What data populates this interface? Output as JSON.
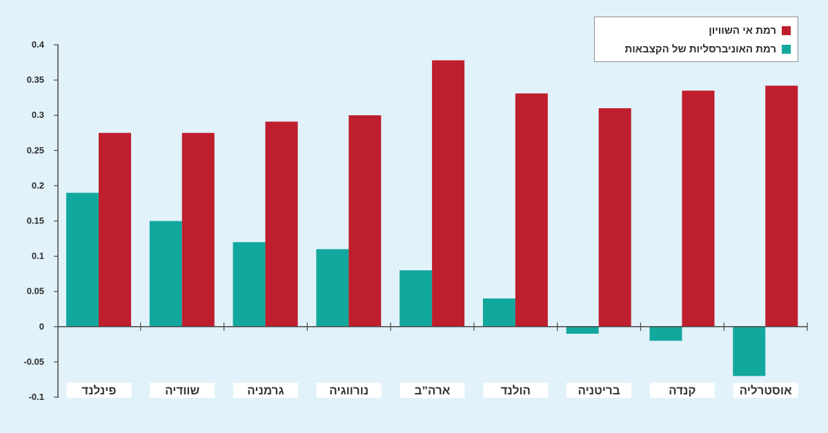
{
  "chart_data": {
    "type": "bar",
    "title": "",
    "xlabel": "",
    "ylabel": "",
    "ylim": [
      -0.1,
      0.4
    ],
    "yticks": [
      0.4,
      0.35,
      0.3,
      0.25,
      0.2,
      0.15,
      0.1,
      0.05,
      0,
      -0.05,
      -0.1
    ],
    "ytick_labels": [
      "0.4",
      "0.35",
      "0.3",
      "0.25",
      "0.2",
      "0.15",
      "0.1",
      "0.05",
      "0",
      "-0.05",
      "-0.1"
    ],
    "categories": [
      "פינלנד",
      "שוודיה",
      "גרמניה",
      "נורווגיה",
      "ארה”ב",
      "הולנד",
      "בריטניה",
      "קנדה",
      "אוסטרליה"
    ],
    "series": [
      {
        "name": "רמת האוניברסליות של הקצבאות",
        "color": "#13a89e",
        "values": [
          0.19,
          0.15,
          0.12,
          0.11,
          0.08,
          0.04,
          -0.01,
          -0.02,
          -0.07
        ]
      },
      {
        "name": "רמת אי השוויון",
        "color": "#be1e2d",
        "values": [
          0.275,
          0.275,
          0.291,
          0.3,
          0.378,
          0.331,
          0.31,
          0.335,
          0.342
        ]
      }
    ],
    "legend_position": "top-right",
    "grid": false
  }
}
